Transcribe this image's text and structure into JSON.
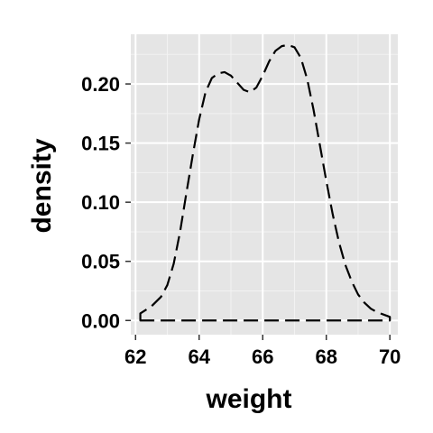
{
  "chart_data": {
    "type": "line",
    "title": "",
    "xlabel": "weight",
    "ylabel": "density",
    "xlim": [
      61.85,
      70.25
    ],
    "ylim": [
      -0.012,
      0.242
    ],
    "x_ticks": [
      62,
      64,
      66,
      68,
      70
    ],
    "x_tick_labels": [
      "62",
      "64",
      "66",
      "68",
      "70"
    ],
    "y_ticks": [
      0.0,
      0.05,
      0.1,
      0.15,
      0.2
    ],
    "y_tick_labels": [
      "0.00",
      "0.05",
      "0.10",
      "0.15",
      "0.20"
    ],
    "grid": true,
    "legend": "none",
    "colors": {
      "panel_background": "#e5e5e5",
      "grid_major": "#ffffff",
      "grid_minor": "#f2f2f2",
      "line": "#000000",
      "tick": "#333333"
    },
    "series": [
      {
        "line_style": "dashed",
        "x": [
          62.15,
          62.5,
          62.8,
          63.0,
          63.2,
          63.4,
          63.6,
          63.8,
          64.0,
          64.2,
          64.4,
          64.6,
          64.8,
          65.0,
          65.2,
          65.4,
          65.6,
          65.8,
          66.0,
          66.2,
          66.4,
          66.6,
          66.8,
          67.0,
          67.2,
          67.4,
          67.6,
          67.8,
          68.0,
          68.2,
          68.4,
          68.6,
          68.8,
          69.0,
          69.2,
          69.4,
          69.6,
          69.8,
          70.0
        ],
        "y": [
          0.006,
          0.012,
          0.02,
          0.03,
          0.048,
          0.075,
          0.108,
          0.14,
          0.17,
          0.193,
          0.205,
          0.209,
          0.21,
          0.207,
          0.201,
          0.195,
          0.193,
          0.197,
          0.207,
          0.219,
          0.228,
          0.232,
          0.233,
          0.231,
          0.222,
          0.204,
          0.178,
          0.148,
          0.118,
          0.09,
          0.066,
          0.047,
          0.033,
          0.022,
          0.015,
          0.01,
          0.007,
          0.005,
          0.003
        ]
      }
    ]
  }
}
